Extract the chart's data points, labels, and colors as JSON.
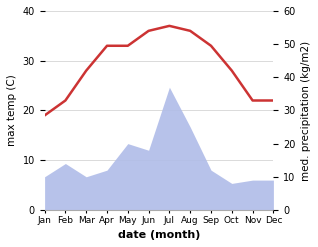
{
  "months": [
    "Jan",
    "Feb",
    "Mar",
    "Apr",
    "May",
    "Jun",
    "Jul",
    "Aug",
    "Sep",
    "Oct",
    "Nov",
    "Dec"
  ],
  "temperature": [
    19,
    22,
    28,
    33,
    33,
    36,
    37,
    36,
    33,
    28,
    22,
    22
  ],
  "precipitation": [
    10,
    14,
    10,
    12,
    20,
    18,
    37,
    25,
    12,
    8,
    9,
    9
  ],
  "temp_color": "#cc3333",
  "precip_color": "#b0bce8",
  "ylabel_left": "max temp (C)",
  "ylabel_right": "med. precipitation (kg/m2)",
  "xlabel": "date (month)",
  "ylim_left": [
    0,
    40
  ],
  "ylim_right": [
    0,
    60
  ],
  "bg_color": "#ffffff",
  "grid_color": "#cccccc"
}
